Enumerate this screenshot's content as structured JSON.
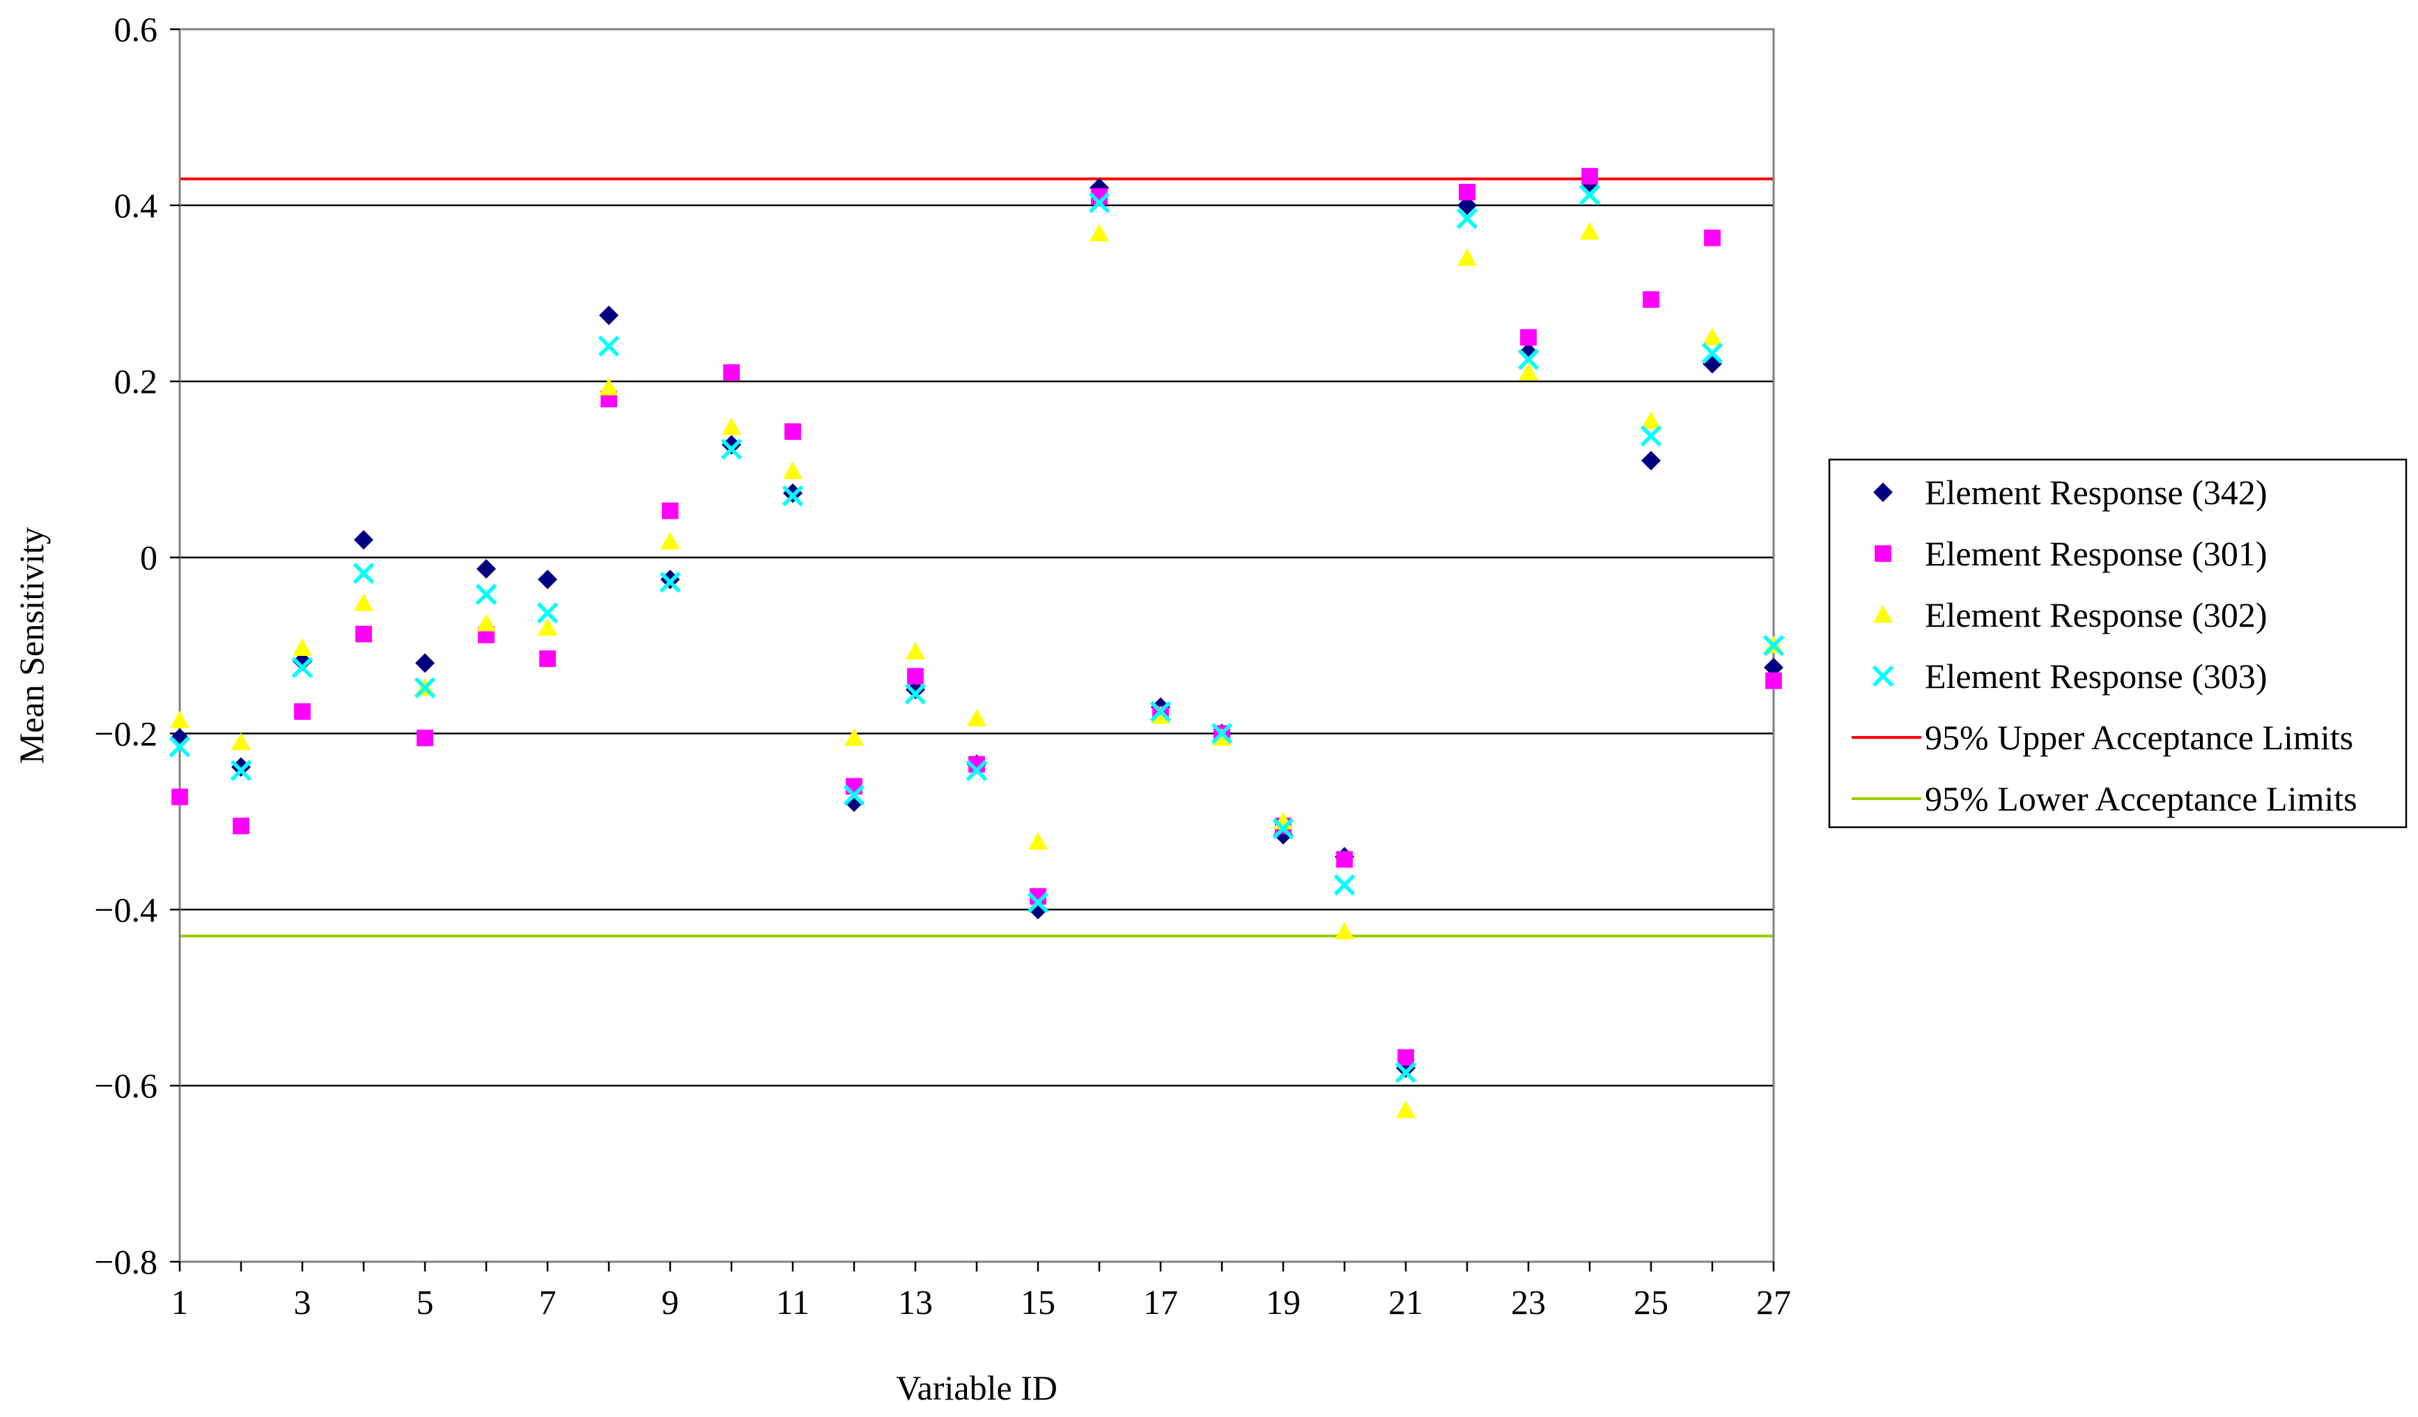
{
  "chart_data": {
    "type": "scatter",
    "title": "",
    "xlabel": "Variable ID",
    "ylabel": "Mean Sensitivity",
    "xlim": [
      1,
      27
    ],
    "ylim": [
      -0.8,
      0.6
    ],
    "x_ticks": [
      1,
      3,
      5,
      7,
      9,
      11,
      13,
      15,
      17,
      19,
      21,
      23,
      25,
      27
    ],
    "x_tick_labels": [
      "1",
      "3",
      "5",
      "7",
      "9",
      "11",
      "13",
      "15",
      "17",
      "19",
      "21",
      "23",
      "25",
      "27"
    ],
    "y_ticks": [
      -0.8,
      -0.6,
      -0.4,
      -0.2,
      0,
      0.2,
      0.4,
      0.6
    ],
    "y_tick_labels": [
      "−0.8",
      "−0.6",
      "−0.4",
      "−0.2",
      "0",
      "0.2",
      "0.4",
      "0.6"
    ],
    "grid": "horizontal",
    "legend_position": "right",
    "x": [
      1,
      2,
      3,
      4,
      5,
      6,
      7,
      8,
      9,
      10,
      11,
      12,
      13,
      14,
      15,
      16,
      17,
      18,
      19,
      20,
      21,
      22,
      23,
      24,
      25,
      26,
      27
    ],
    "series": [
      {
        "name": "Element Response (342)",
        "marker": "diamond",
        "color": "#000080",
        "values": [
          -0.205,
          -0.238,
          -0.118,
          0.02,
          -0.12,
          -0.013,
          -0.025,
          0.275,
          -0.025,
          0.128,
          0.073,
          -0.278,
          -0.15,
          -0.235,
          -0.4,
          0.42,
          -0.17,
          -0.2,
          -0.315,
          -0.34,
          -0.58,
          0.4,
          0.233,
          0.42,
          0.11,
          0.22,
          -0.125
        ]
      },
      {
        "name": "Element Response (301)",
        "marker": "square",
        "color": "#FF00FF",
        "values": [
          -0.272,
          -0.305,
          -0.175,
          -0.087,
          -0.205,
          -0.088,
          -0.115,
          0.18,
          0.053,
          0.21,
          0.143,
          -0.26,
          -0.135,
          -0.235,
          -0.385,
          0.41,
          -0.178,
          -0.2,
          -0.305,
          -0.343,
          -0.568,
          0.415,
          0.25,
          0.433,
          0.293,
          0.363,
          -0.14
        ]
      },
      {
        "name": "Element Response (302)",
        "marker": "triangle",
        "color": "#FFFF00",
        "values": [
          -0.185,
          -0.21,
          -0.103,
          -0.052,
          -0.148,
          -0.075,
          -0.08,
          0.193,
          0.018,
          0.148,
          0.098,
          -0.205,
          -0.107,
          -0.183,
          -0.323,
          0.368,
          -0.18,
          -0.205,
          -0.3,
          -0.425,
          -0.628,
          0.34,
          0.21,
          0.37,
          0.155,
          0.25,
          -0.1
        ]
      },
      {
        "name": "Element Response (303)",
        "marker": "x",
        "color": "#00FFFF",
        "values": [
          -0.215,
          -0.242,
          -0.125,
          -0.018,
          -0.148,
          -0.042,
          -0.063,
          0.24,
          -0.028,
          0.123,
          0.07,
          -0.27,
          -0.155,
          -0.242,
          -0.392,
          0.403,
          -0.175,
          -0.2,
          -0.308,
          -0.372,
          -0.585,
          0.385,
          0.225,
          0.412,
          0.138,
          0.232,
          -0.1
        ]
      }
    ],
    "reference_lines": [
      {
        "name": "95% Upper Acceptance Limits",
        "value": 0.43,
        "color": "#FF0000"
      },
      {
        "name": "95% Lower Acceptance Limits",
        "value": -0.43,
        "color": "#99CC00"
      }
    ]
  }
}
